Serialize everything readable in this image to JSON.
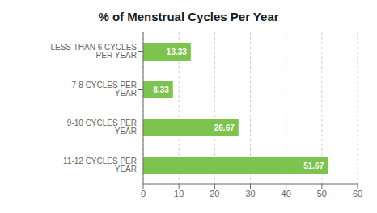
{
  "chart_data": {
    "type": "bar",
    "orientation": "horizontal",
    "title": "% of Menstrual Cycles Per Year",
    "categories": [
      "LESS THAN 6 CYCLES PER YEAR",
      "7-8 CYCLES PER YEAR",
      "9-10 CYCLES PER YEAR",
      "11-12 CYCLES PER YEAR"
    ],
    "values": [
      13.33,
      8.33,
      26.67,
      51.67
    ],
    "color": "#7dc44e",
    "xlim": [
      0,
      60
    ],
    "xticks": [
      0,
      10,
      20,
      30,
      40,
      50,
      60
    ],
    "grid": true,
    "data_labels": true
  }
}
